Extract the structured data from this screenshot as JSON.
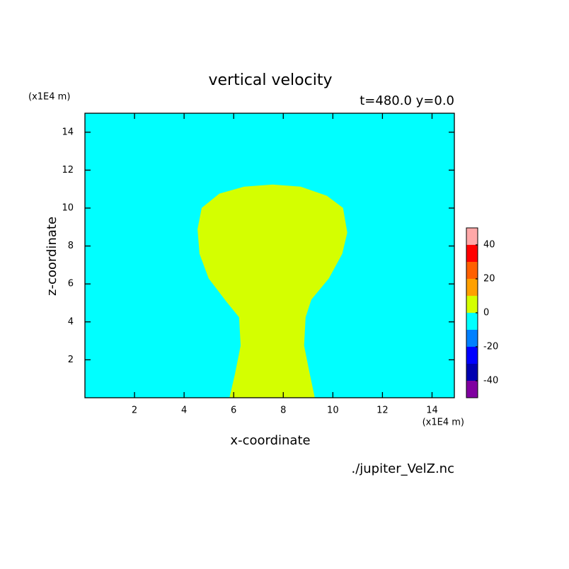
{
  "chart_data": {
    "type": "contour",
    "title": "vertical velocity",
    "subtitle": "t=480.0 y=0.0",
    "x_label": "x-coordinate",
    "y_label": "z-coordinate",
    "x_unit": "(x1E4 m)",
    "y_unit": "(x1E4 m)",
    "source": "./jupiter_VelZ.nc",
    "xlim": [
      0,
      14.9
    ],
    "ylim": [
      0,
      15
    ],
    "xticks": [
      2,
      4,
      6,
      8,
      10,
      12,
      14
    ],
    "yticks": [
      2,
      4,
      6,
      8,
      10,
      12,
      14
    ],
    "background_color": "#00ffff",
    "regions": [
      {
        "color": "#d4ff00",
        "x": [
          5.83,
          6.05,
          6.28,
          6.22,
          5.71,
          4.99,
          4.62,
          4.54,
          4.71,
          5.42,
          6.42,
          7.56,
          8.7,
          9.76,
          10.41,
          10.58,
          10.38,
          9.84,
          9.13,
          8.9,
          8.84,
          9.04,
          9.27
        ],
        "y": [
          0,
          1.25,
          2.75,
          4.24,
          5.06,
          6.29,
          7.59,
          8.89,
          10.01,
          10.76,
          11.13,
          11.24,
          11.13,
          10.65,
          10.01,
          8.71,
          7.59,
          6.29,
          5.17,
          4.24,
          2.75,
          1.44,
          0
        ]
      }
    ],
    "colorbar": {
      "levels": [
        -50,
        -40,
        -30,
        -20,
        -10,
        0,
        10,
        20,
        30,
        40,
        50
      ],
      "colors": [
        "#8000a0",
        "#0000b0",
        "#0000ff",
        "#0080ff",
        "#00ffff",
        "#d4ff00",
        "#ffa000",
        "#ff6000",
        "#ff0000",
        "#ffa8a8"
      ],
      "ticks": [
        -40,
        -20,
        0,
        20,
        40
      ]
    }
  }
}
